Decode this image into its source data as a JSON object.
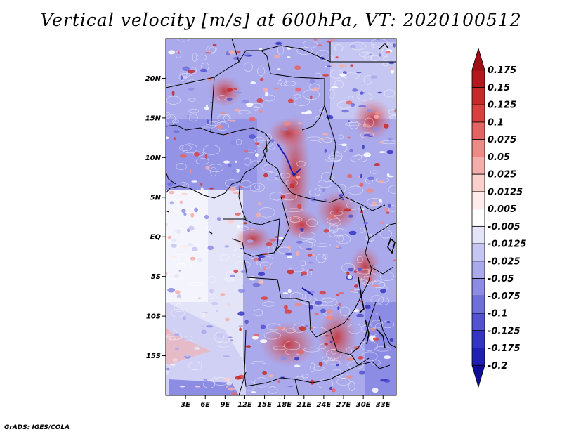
{
  "title": "Vertical velocity [m/s] at 600hPa, VT: 2020100512",
  "credit": "GrADS: IGES/COLA",
  "map": {
    "lat_labels": [
      "20N",
      "15N",
      "10N",
      "5N",
      "EQ",
      "5S",
      "10S",
      "15S"
    ],
    "lat_values": [
      20,
      15,
      10,
      5,
      0,
      -5,
      -10,
      -15
    ],
    "lon_labels": [
      "3E",
      "6E",
      "9E",
      "12E",
      "15E",
      "18E",
      "21E",
      "24E",
      "27E",
      "30E",
      "33E"
    ],
    "lon_values": [
      3,
      6,
      9,
      12,
      15,
      18,
      21,
      24,
      27,
      30,
      33
    ],
    "lat_range": [
      -20,
      25
    ],
    "lon_range": [
      0,
      35
    ]
  },
  "colorbar": {
    "labels": [
      "0.175",
      "0.15",
      "0.125",
      "0.1",
      "0.075",
      "0.05",
      "0.025",
      "0.0125",
      "0.005",
      "-0.005",
      "-0.0125",
      "-0.025",
      "-0.05",
      "-0.075",
      "-0.1",
      "-0.125",
      "-0.175",
      "-0.2"
    ],
    "colors": [
      "#9e0f14",
      "#b2181d",
      "#c52a2a",
      "#d84040",
      "#e46464",
      "#ec8a86",
      "#f4aeaa",
      "#f9d0cc",
      "#fdeceb",
      "#ffffff",
      "#e4e4f8",
      "#c6c6f2",
      "#a9a9ec",
      "#8c8ce4",
      "#6f6fdc",
      "#5252d2",
      "#3535c4",
      "#1f1fb2",
      "#0e0e96"
    ]
  }
}
